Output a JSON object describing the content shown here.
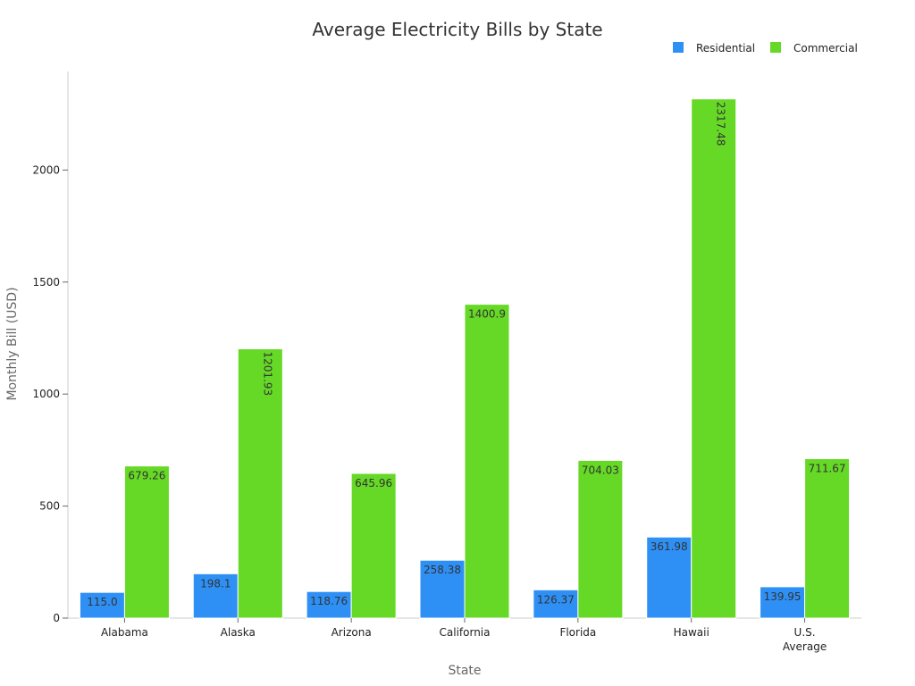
{
  "chart_data": {
    "type": "bar",
    "title": "Average Electricity Bills by State",
    "xlabel": "State",
    "ylabel": "Monthly Bill (USD)",
    "categories": [
      "Alabama",
      "Alaska",
      "Arizona",
      "California",
      "Florida",
      "Hawaii",
      "U.S. Average"
    ],
    "series": [
      {
        "name": "Residential",
        "color": "#2e90f5",
        "values": [
          115.0,
          198.1,
          118.76,
          258.38,
          126.37,
          361.98,
          139.95
        ],
        "labels": [
          "115.0",
          "198.1",
          "118.76",
          "258.38",
          "126.37",
          "361.98",
          "139.95"
        ]
      },
      {
        "name": "Commercial",
        "color": "#66d926",
        "values": [
          679.26,
          1201.93,
          645.96,
          1400.9,
          704.03,
          2317.48,
          711.67
        ],
        "labels": [
          "679.26",
          "1201.93",
          "645.96",
          "1400.9",
          "704.03",
          "2317.48",
          "711.67"
        ]
      }
    ],
    "ylim": [
      0,
      2440
    ],
    "yticks": [
      0,
      500,
      1000,
      1500,
      2000
    ],
    "grid": false,
    "legend": "top-right"
  }
}
